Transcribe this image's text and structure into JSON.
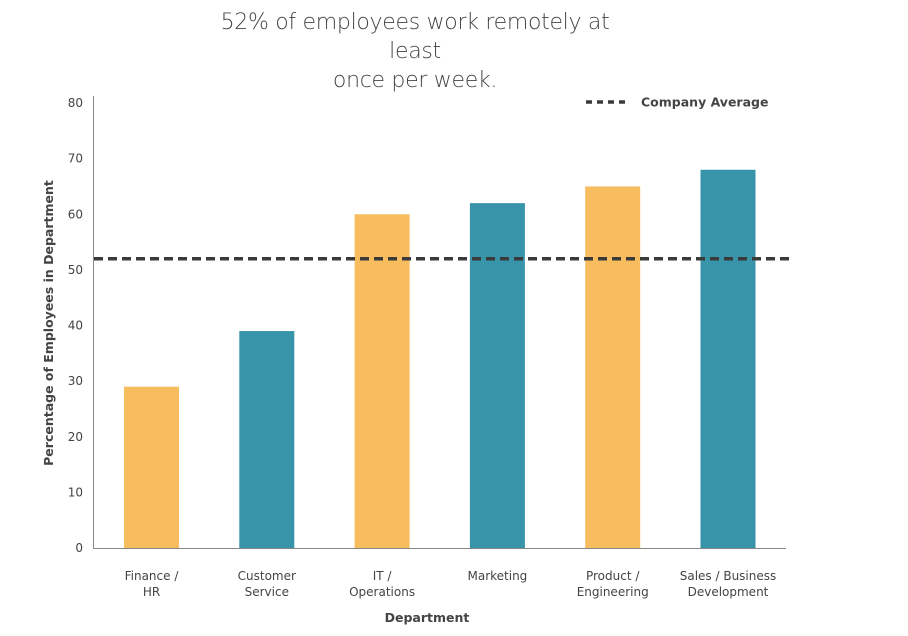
{
  "chart_data": {
    "type": "bar",
    "title": "52% of employees work remotely at least once per week.",
    "title_lines": [
      "52% of employees work remotely at least",
      "once per week."
    ],
    "xlabel": "Department",
    "ylabel": "Percentage of Employees in Department",
    "ylim": [
      0,
      80
    ],
    "yticks": [
      0,
      10,
      20,
      30,
      40,
      50,
      60,
      70,
      80
    ],
    "categories": [
      [
        "Finance /",
        "HR"
      ],
      [
        "Customer",
        "Service"
      ],
      [
        "IT /",
        "Operations"
      ],
      [
        "Marketing"
      ],
      [
        "Product /",
        "Engineering"
      ],
      [
        "Sales / Business",
        "Development"
      ]
    ],
    "values": [
      29,
      39,
      60,
      62,
      65,
      68
    ],
    "bar_colors": [
      "#F6BC5E",
      "#3794A9",
      "#F6BC5E",
      "#3794A9",
      "#F6BC5E",
      "#3794A9"
    ],
    "reference_line": {
      "name": "Company Average",
      "value": 52,
      "color": "#3A3A3A",
      "style": "dashed"
    },
    "legend": {
      "placement": "top-right",
      "entries": [
        "Company Average"
      ]
    },
    "grid": false
  }
}
